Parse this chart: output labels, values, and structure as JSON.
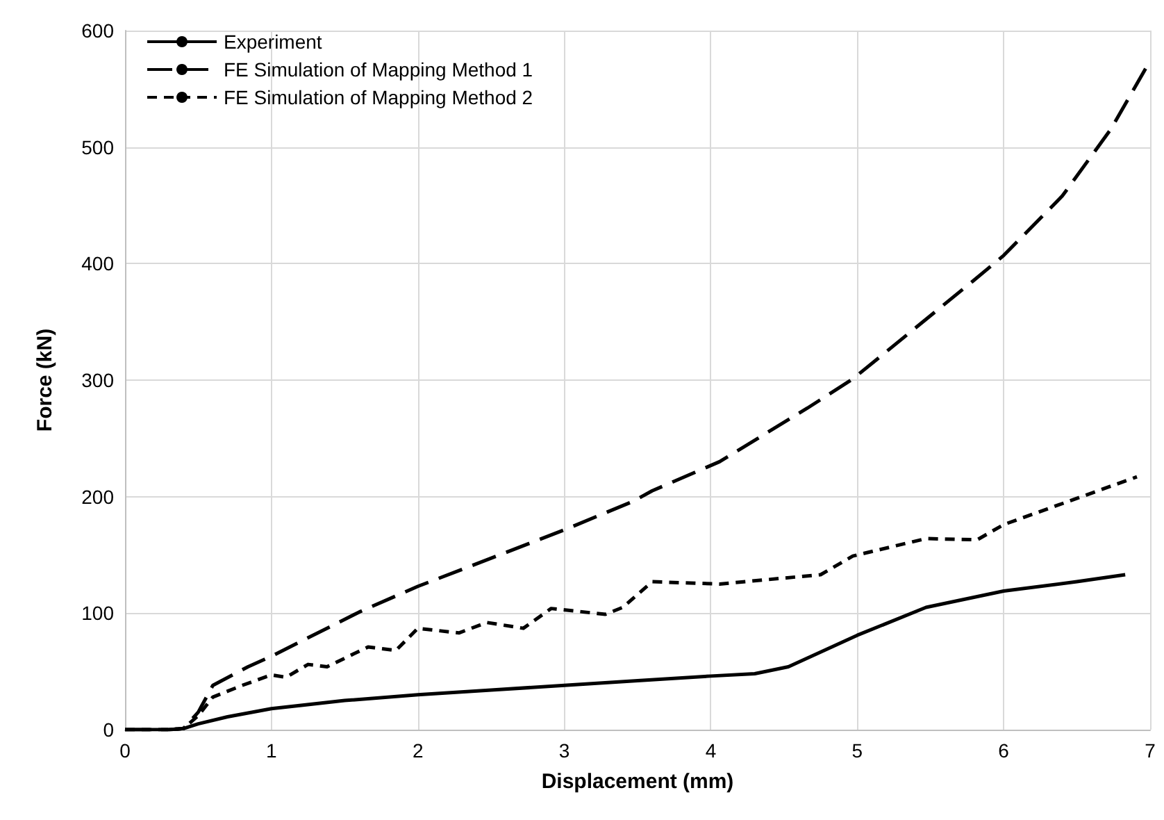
{
  "chart_data": {
    "type": "line",
    "xlabel": "Displacement (mm)",
    "ylabel": "Force (kN)",
    "xlim": [
      0,
      7
    ],
    "xticks": [
      0,
      1,
      2,
      3,
      4,
      5,
      6,
      7
    ],
    "ylim": [
      0,
      600
    ],
    "yticks": [
      0,
      100,
      200,
      300,
      400,
      500,
      600
    ],
    "grid": true,
    "legend": "top left",
    "marker": "none",
    "series": [
      {
        "name": "Experiment",
        "color": "#000000",
        "line_style": "solid",
        "x": [
          0,
          0.3,
          0.4,
          0.5,
          0.7,
          1.0,
          1.5,
          2.0,
          2.5,
          3.0,
          3.5,
          4.0,
          4.3,
          4.53,
          5.0,
          5.47,
          6.0,
          6.5,
          6.83
        ],
        "values": [
          0,
          0,
          1,
          5,
          11,
          18,
          25,
          30,
          34,
          38,
          42,
          46,
          48,
          54,
          81,
          105,
          119,
          127,
          133
        ]
      },
      {
        "name": "FE Simulation of Mapping Method 1",
        "color": "#000000",
        "line_style": "dashed",
        "x": [
          0,
          0.3,
          0.4,
          0.5,
          0.6,
          0.84,
          1.0,
          1.6,
          2.0,
          2.6,
          3.03,
          3.47,
          3.6,
          4.06,
          4.66,
          4.97,
          5.79,
          6.0,
          6.4,
          6.73,
          7.0
        ],
        "values": [
          0,
          0,
          1,
          15,
          38,
          54,
          63,
          101,
          123,
          152,
          173,
          196,
          205,
          230,
          276,
          301,
          385,
          407,
          458,
          515,
          574
        ]
      },
      {
        "name": "FE Simulation of Mapping Method 2",
        "color": "#000000",
        "line_style": "dotted",
        "x": [
          0,
          0.3,
          0.4,
          0.5,
          0.6,
          0.8,
          1.0,
          1.1,
          1.25,
          1.38,
          1.66,
          1.85,
          2.0,
          2.28,
          2.47,
          2.72,
          2.91,
          3.28,
          3.4,
          3.6,
          4.06,
          4.75,
          4.97,
          5.47,
          5.82,
          6.0,
          6.91
        ],
        "values": [
          0,
          0,
          1,
          12,
          28,
          38,
          47,
          45,
          56,
          54,
          71,
          68,
          87,
          83,
          92,
          87,
          104,
          99,
          105,
          127,
          125,
          133,
          149,
          164,
          163,
          176,
          217
        ]
      }
    ]
  }
}
